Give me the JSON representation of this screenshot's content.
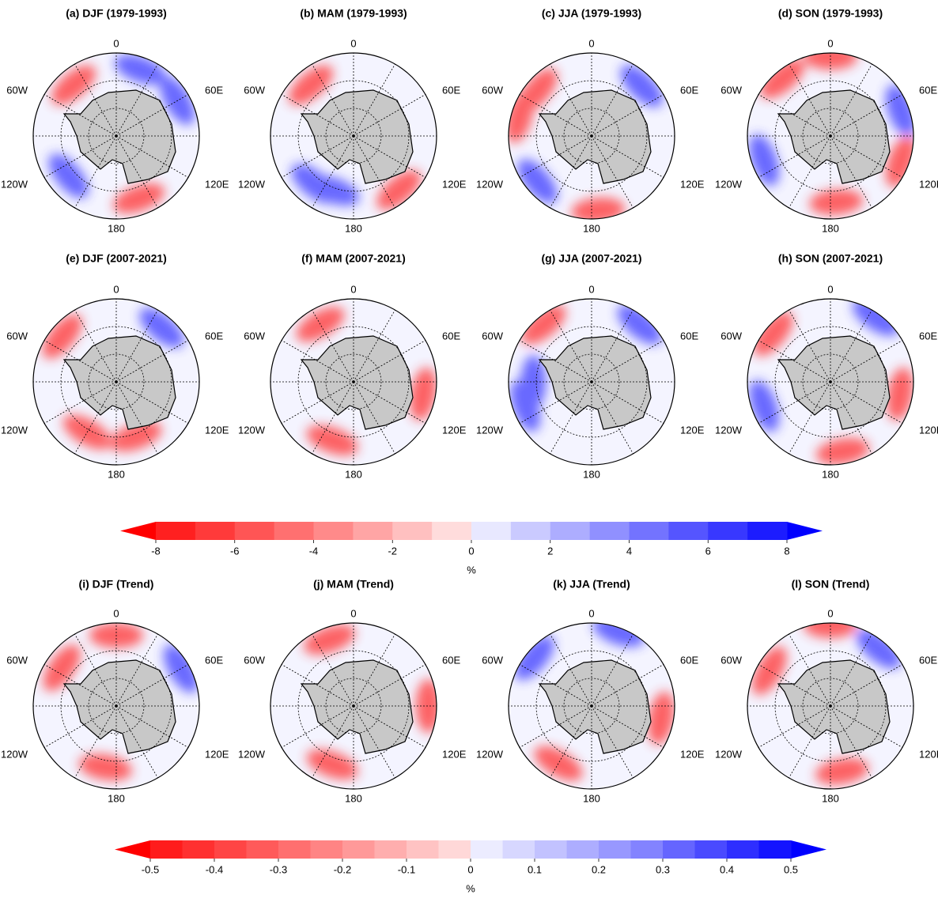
{
  "panels": [
    {
      "title": "(a) DJF (1979-1993)"
    },
    {
      "title": "(b) MAM (1979-1993)"
    },
    {
      "title": "(c) JJA (1979-1993)"
    },
    {
      "title": "(d) SON (1979-1993)"
    },
    {
      "title": "(e) DJF (2007-2021)"
    },
    {
      "title": "(f) MAM (2007-2021)"
    },
    {
      "title": "(g) JJA (2007-2021)"
    },
    {
      "title": "(h) SON (2007-2021)"
    },
    {
      "title": "(i) DJF (Trend)"
    },
    {
      "title": "(j) MAM (Trend)"
    },
    {
      "title": "(k) JJA (Trend)"
    },
    {
      "title": "(l) SON (Trend)"
    }
  ],
  "lon_labels": [
    "0",
    "60E",
    "120E",
    "180",
    "120W",
    "60W"
  ],
  "colorbars": [
    {
      "xlim": [
        -8,
        8
      ],
      "xticks": [
        -8,
        -6,
        -4,
        -2,
        0,
        2,
        4,
        6,
        8
      ],
      "label": "%",
      "under_color": "#ff0000",
      "over_color": "#0000ff",
      "colors": [
        "#ff2020",
        "#ff3a3a",
        "#ff5555",
        "#ff7070",
        "#ff8a8a",
        "#ffa5a5",
        "#ffc0c0",
        "#ffdcdc",
        "#e8e8ff",
        "#cacaff",
        "#adadff",
        "#9090ff",
        "#7373ff",
        "#5555ff",
        "#3838ff",
        "#1c1cff"
      ]
    },
    {
      "xlim": [
        -0.5,
        0.5
      ],
      "xticks": [
        -0.5,
        -0.4,
        -0.3,
        -0.2,
        -0.1,
        0,
        0.1,
        0.2,
        0.3,
        0.4,
        0.5
      ],
      "label": "%",
      "under_color": "#ff0000",
      "over_color": "#0000ff",
      "colors": [
        "#ff1c1c",
        "#ff3030",
        "#ff4545",
        "#ff5a5a",
        "#ff6f6f",
        "#ff8484",
        "#ff9999",
        "#ffaeae",
        "#ffc3c3",
        "#ffd8d8",
        "#ececff",
        "#d7d7ff",
        "#c2c2ff",
        "#adadff",
        "#9898ff",
        "#8383ff",
        "#6565ff",
        "#4a4aff",
        "#2e2eff",
        "#1414ff"
      ]
    }
  ]
}
